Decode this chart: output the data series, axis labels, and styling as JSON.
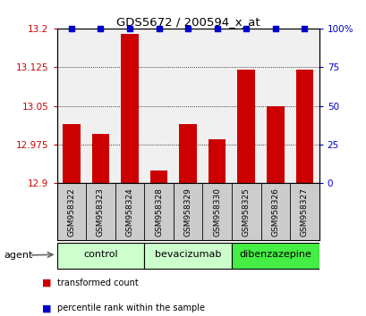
{
  "title": "GDS5672 / 200594_x_at",
  "samples": [
    "GSM958322",
    "GSM958323",
    "GSM958324",
    "GSM958328",
    "GSM958329",
    "GSM958330",
    "GSM958325",
    "GSM958326",
    "GSM958327"
  ],
  "transformed_counts": [
    13.015,
    12.995,
    13.19,
    12.925,
    13.015,
    12.985,
    13.12,
    13.05,
    13.12
  ],
  "percentile_ranks": [
    100,
    100,
    100,
    100,
    100,
    100,
    100,
    100,
    100
  ],
  "groups": [
    {
      "label": "control",
      "indices": [
        0,
        1,
        2
      ],
      "color": "#ccffcc"
    },
    {
      "label": "bevacizumab",
      "indices": [
        3,
        4,
        5
      ],
      "color": "#ccffcc"
    },
    {
      "label": "dibenzazepine",
      "indices": [
        6,
        7,
        8
      ],
      "color": "#44ee44"
    }
  ],
  "bar_color": "#cc0000",
  "percentile_color": "#0000cc",
  "ylim_left": [
    12.9,
    13.2
  ],
  "ylim_right": [
    0,
    100
  ],
  "yticks_left": [
    12.9,
    12.975,
    13.05,
    13.125,
    13.2
  ],
  "ytick_labels_left": [
    "12.9",
    "12.975",
    "13.05",
    "13.125",
    "13.2"
  ],
  "yticks_right": [
    0,
    25,
    50,
    75,
    100
  ],
  "ytick_labels_right": [
    "0",
    "25",
    "50",
    "75",
    "100%"
  ],
  "background_color": "#ffffff",
  "plot_bg_color": "#f0f0f0",
  "tick_area_color": "#cccccc",
  "agent_label": "agent",
  "legend_items": [
    {
      "color": "#cc0000",
      "label": "transformed count"
    },
    {
      "color": "#0000cc",
      "label": "percentile rank within the sample"
    }
  ]
}
